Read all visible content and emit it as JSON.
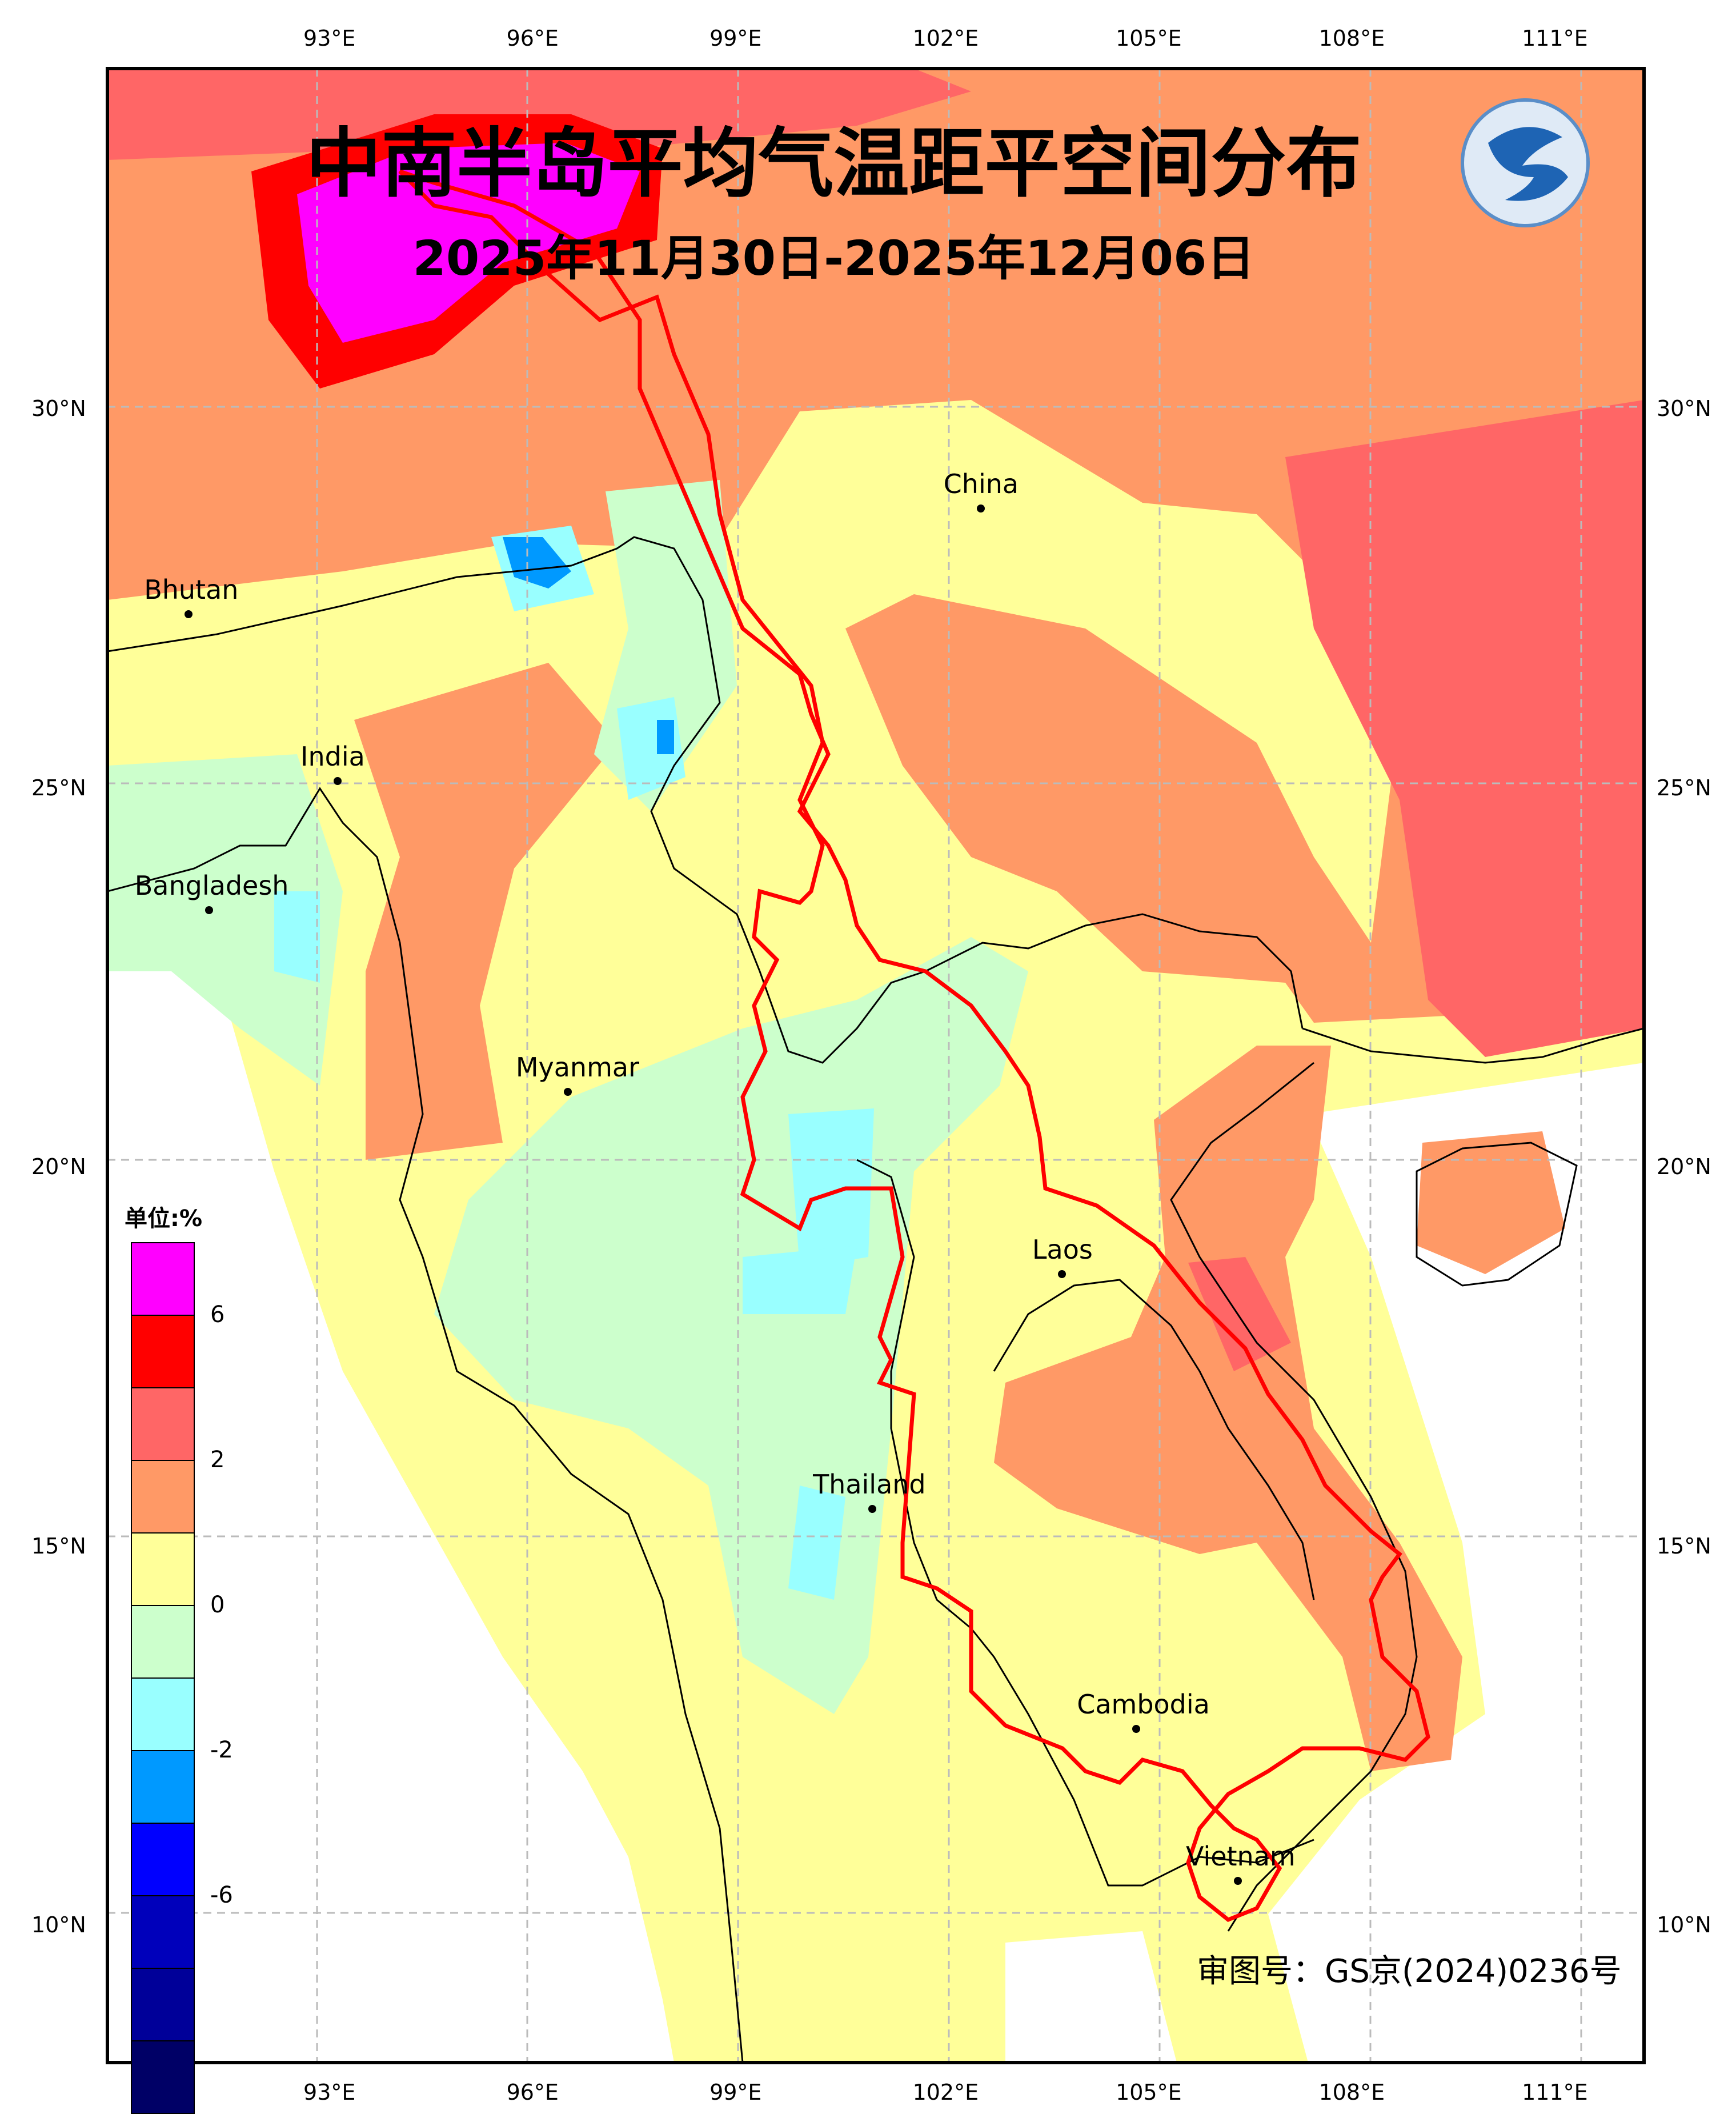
{
  "title": "中南半岛平均气温距平空间分布",
  "subtitle": "2025年11月30日-2025年12月06日",
  "x_ticks": [
    "93°E",
    "96°E",
    "99°E",
    "102°E",
    "105°E",
    "108°E",
    "111°E"
  ],
  "y_ticks": [
    "30°N",
    "25°N",
    "20°N",
    "15°N",
    "10°N"
  ],
  "places": [
    {
      "name": "China",
      "lon": 102.6,
      "lat": 28.7
    },
    {
      "name": "Bhutan",
      "lon": 90.9,
      "lat": 27.3
    },
    {
      "name": "India",
      "lon": 93.1,
      "lat": 25.1
    },
    {
      "name": "Bangladesh",
      "lon": 91.2,
      "lat": 23.4
    },
    {
      "name": "Myanmar",
      "lon": 96.5,
      "lat": 21.0
    },
    {
      "name": "Laos",
      "lon": 103.8,
      "lat": 18.6
    },
    {
      "name": "Thailand",
      "lon": 101.0,
      "lat": 15.5
    },
    {
      "name": "Cambodia",
      "lon": 104.9,
      "lat": 12.6
    },
    {
      "name": "Vietnam",
      "lon": 106.4,
      "lat": 10.6
    }
  ],
  "colorbar": {
    "unit": "单位:%",
    "labels": [
      "6",
      "2",
      "0",
      "-2",
      "-6"
    ],
    "colors": [
      "#ff00ff",
      "#ff0000",
      "#ff6666",
      "#ff9966",
      "#ffff99",
      "#ccffcc",
      "#99ffff",
      "#0099ff",
      "#0000ff",
      "#0000bb",
      "#000099",
      "#000066"
    ]
  },
  "approval": "审图号：GS京(2024)0236号",
  "logo_icon": "dragon-logo-icon"
}
